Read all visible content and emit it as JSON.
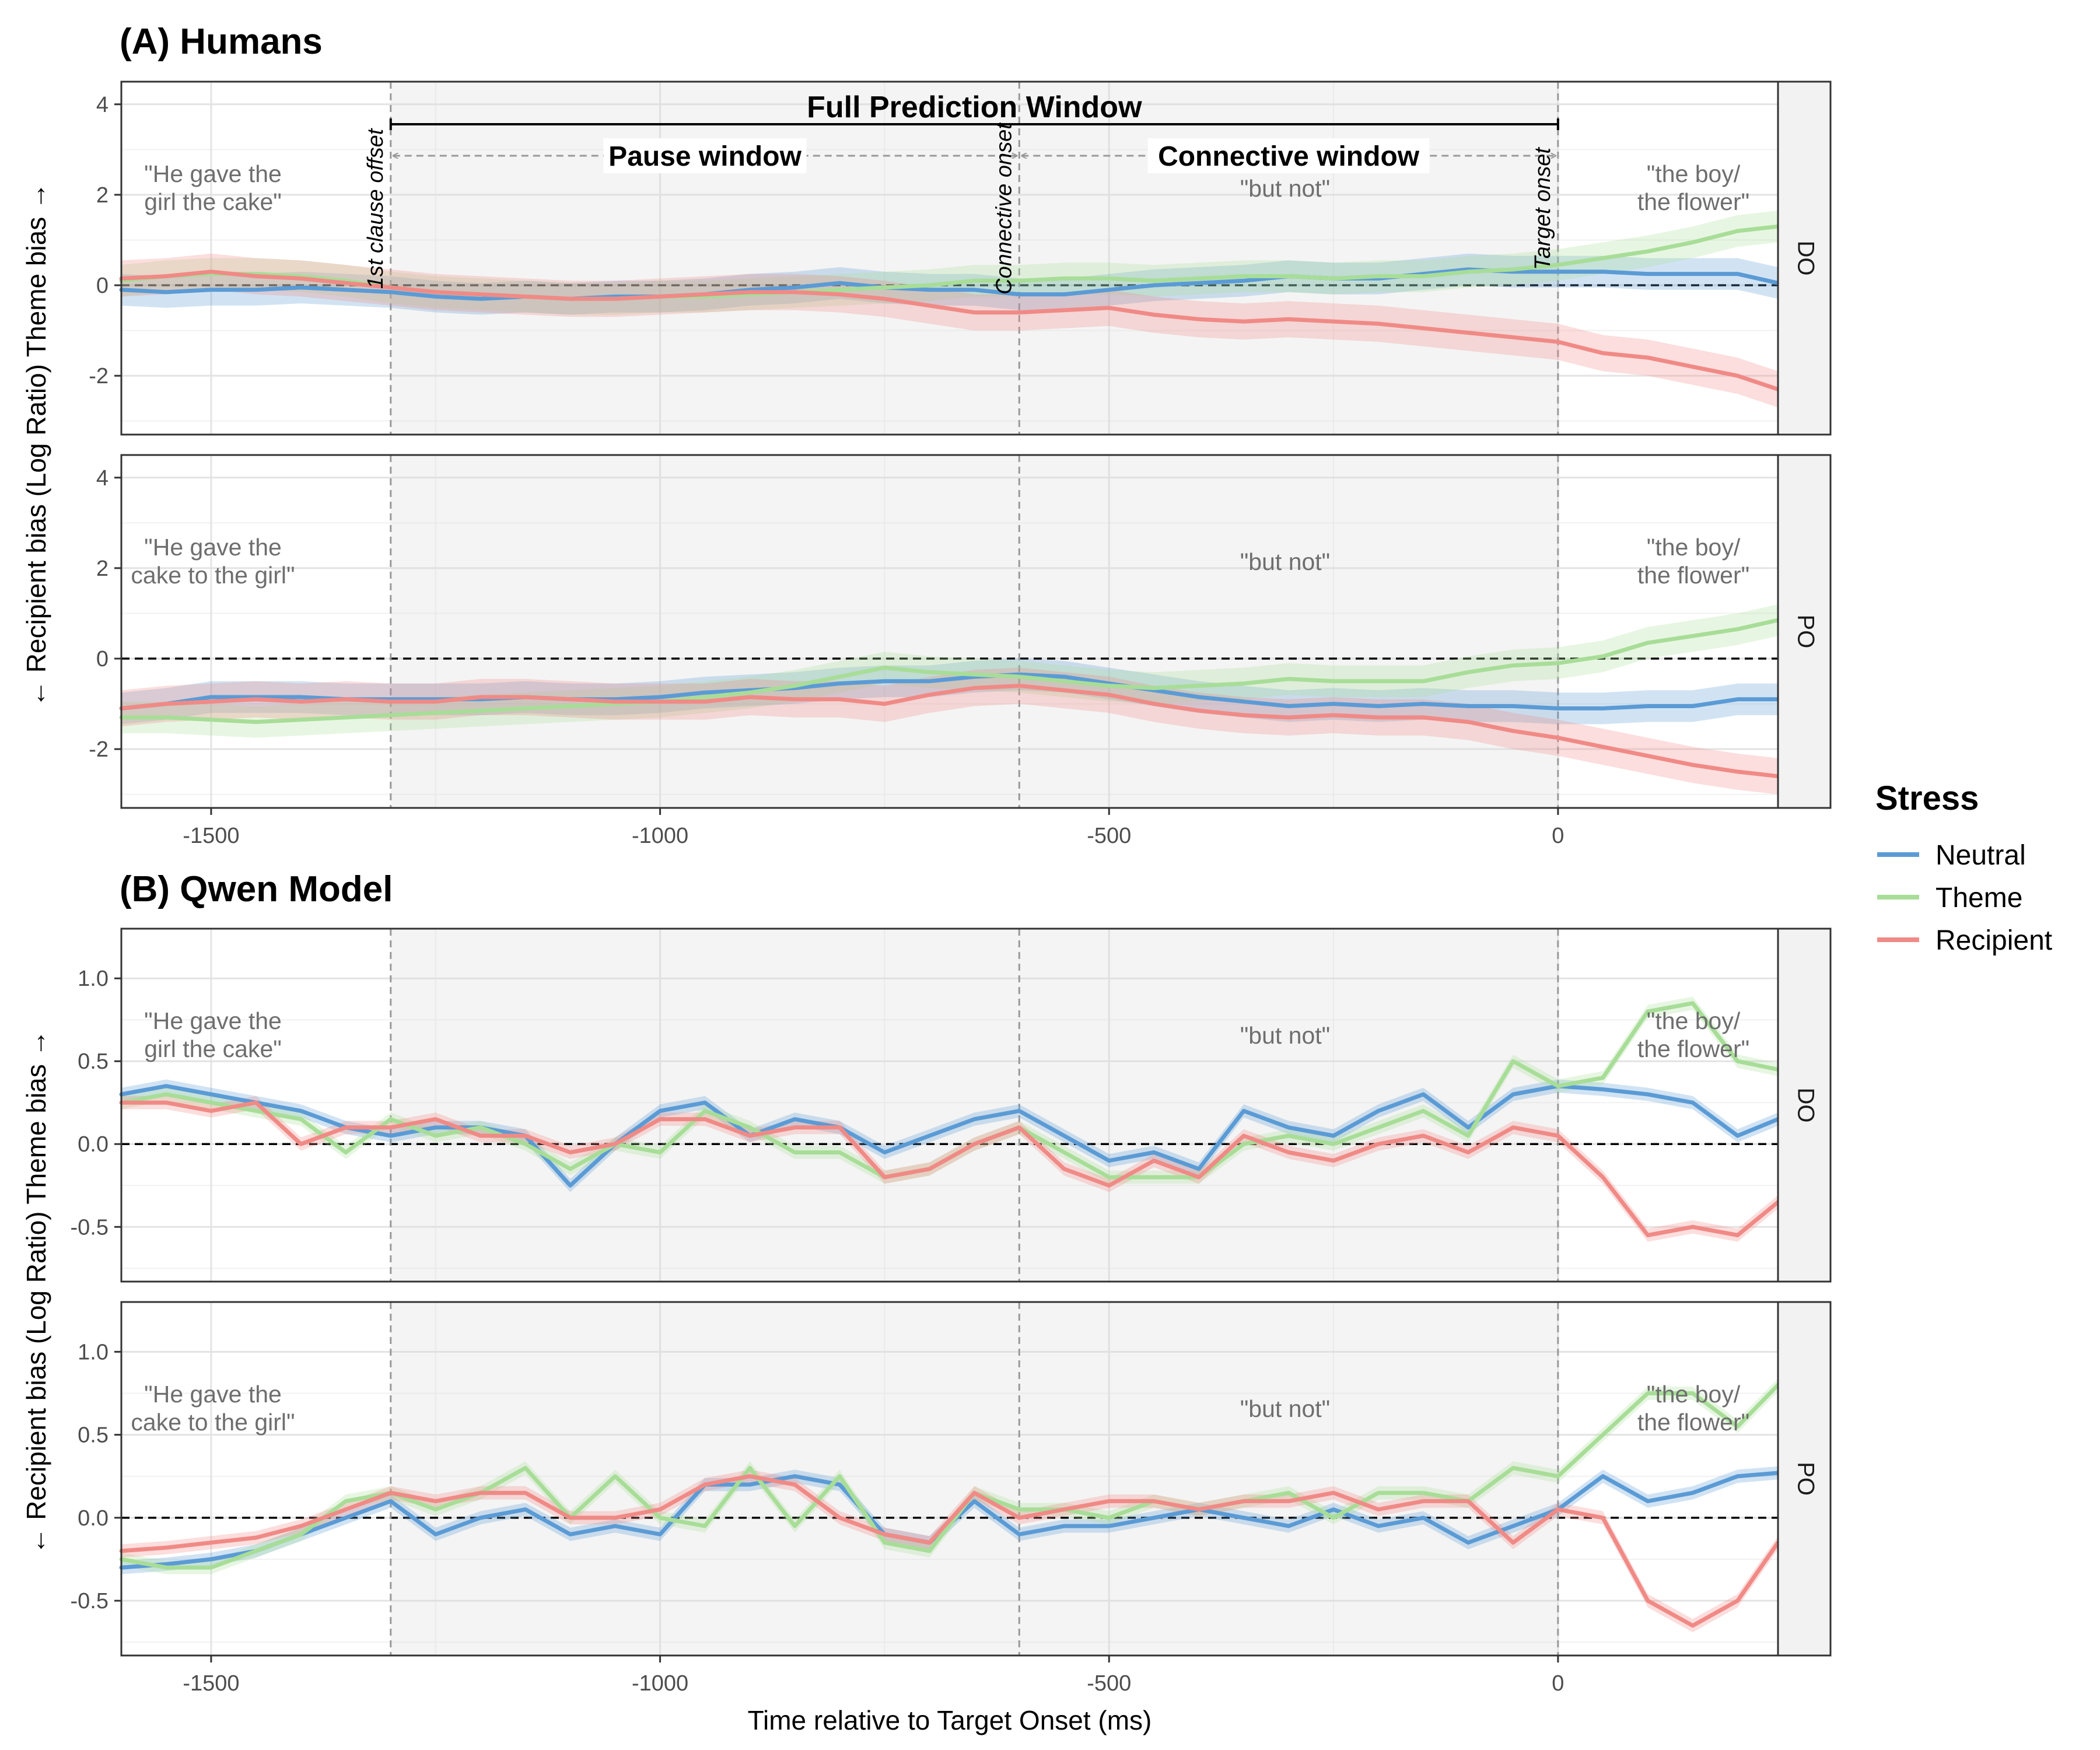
{
  "chart_data": {
    "type": "line",
    "xlabel": "Time relative to Target Onset (ms)",
    "ylabel": "← Recipient bias (Log Ratio) Theme bias →",
    "xlim": [
      -1600,
      245
    ],
    "xticks": [
      -1500,
      -1000,
      -500,
      0
    ],
    "xtick_labels": [
      "-1500",
      "-1000",
      "-500",
      "0"
    ],
    "x": [
      -1600,
      -1550,
      -1500,
      -1450,
      -1400,
      -1350,
      -1300,
      -1250,
      -1200,
      -1150,
      -1100,
      -1050,
      -1000,
      -950,
      -900,
      -850,
      -800,
      -750,
      -700,
      -650,
      -600,
      -550,
      -500,
      -450,
      -400,
      -350,
      -300,
      -250,
      -200,
      -150,
      -100,
      -50,
      0,
      50,
      100,
      150,
      200,
      245
    ],
    "legend": {
      "title": "Stress",
      "entries": [
        "Neutral",
        "Theme",
        "Recipient"
      ],
      "colors": [
        "#5b9bd5",
        "#a8dd98",
        "#f08a86"
      ],
      "position": "right"
    },
    "reference_lines": [
      {
        "x": -1300,
        "label": "1st clause offset"
      },
      {
        "x": -600,
        "label": "Connective onset"
      },
      {
        "x": 0,
        "label": "Target onset"
      }
    ],
    "shaded_region": [
      -1300,
      0
    ],
    "windows": {
      "full": {
        "label": "Full Prediction Window",
        "range": [
          -1300,
          0
        ]
      },
      "pause": {
        "label": "Pause window",
        "range": [
          -1300,
          -600
        ]
      },
      "connective": {
        "label": "Connective window",
        "range": [
          -600,
          0
        ]
      }
    },
    "panels": [
      {
        "id": "A",
        "title": "(A) Humans",
        "ylim": [
          -3.3,
          4.5
        ],
        "yticks": [
          -2,
          0,
          2,
          4
        ],
        "ytick_labels": [
          "-2",
          "0",
          "2",
          "4"
        ],
        "rows": [
          {
            "facet": "DO",
            "phrases": [
              "\"He gave the",
              "girl the cake\"",
              "\"but not\"",
              "\"the boy/",
              "the flower\""
            ],
            "series": [
              {
                "name": "Neutral",
                "band": 0.35,
                "values": [
                  -0.1,
                  -0.15,
                  -0.1,
                  -0.1,
                  -0.05,
                  -0.1,
                  -0.15,
                  -0.25,
                  -0.3,
                  -0.25,
                  -0.3,
                  -0.25,
                  -0.25,
                  -0.2,
                  -0.1,
                  -0.05,
                  0.05,
                  -0.05,
                  -0.1,
                  -0.1,
                  -0.2,
                  -0.2,
                  -0.1,
                  0.0,
                  0.05,
                  0.1,
                  0.2,
                  0.15,
                  0.15,
                  0.25,
                  0.35,
                  0.3,
                  0.3,
                  0.3,
                  0.25,
                  0.25,
                  0.25,
                  0.05
                ]
              },
              {
                "name": "Theme",
                "band": 0.35,
                "values": [
                  0.1,
                  0.2,
                  0.25,
                  0.25,
                  0.2,
                  0.1,
                  -0.05,
                  -0.15,
                  -0.2,
                  -0.25,
                  -0.3,
                  -0.3,
                  -0.25,
                  -0.25,
                  -0.2,
                  -0.15,
                  -0.1,
                  -0.05,
                  0.0,
                  0.1,
                  0.1,
                  0.15,
                  0.15,
                  0.1,
                  0.15,
                  0.2,
                  0.2,
                  0.15,
                  0.2,
                  0.2,
                  0.3,
                  0.35,
                  0.45,
                  0.6,
                  0.75,
                  0.95,
                  1.2,
                  1.3
                ]
              },
              {
                "name": "Recipient",
                "band": 0.4,
                "values": [
                  0.15,
                  0.2,
                  0.3,
                  0.2,
                  0.15,
                  0.05,
                  -0.05,
                  -0.15,
                  -0.2,
                  -0.25,
                  -0.3,
                  -0.3,
                  -0.25,
                  -0.2,
                  -0.15,
                  -0.15,
                  -0.2,
                  -0.3,
                  -0.45,
                  -0.6,
                  -0.6,
                  -0.55,
                  -0.5,
                  -0.65,
                  -0.75,
                  -0.8,
                  -0.75,
                  -0.8,
                  -0.85,
                  -0.95,
                  -1.05,
                  -1.15,
                  -1.25,
                  -1.5,
                  -1.6,
                  -1.8,
                  -2.0,
                  -2.3
                ]
              }
            ]
          },
          {
            "facet": "PO",
            "phrases": [
              "\"He gave the",
              "cake to the girl\"",
              "\"but not\"",
              "\"the boy/",
              "the flower\""
            ],
            "series": [
              {
                "name": "Neutral",
                "band": 0.35,
                "values": [
                  -1.1,
                  -1.0,
                  -0.85,
                  -0.85,
                  -0.85,
                  -0.9,
                  -0.9,
                  -0.9,
                  -0.9,
                  -0.85,
                  -0.9,
                  -0.9,
                  -0.85,
                  -0.75,
                  -0.7,
                  -0.65,
                  -0.55,
                  -0.5,
                  -0.5,
                  -0.4,
                  -0.35,
                  -0.4,
                  -0.55,
                  -0.7,
                  -0.85,
                  -0.95,
                  -1.05,
                  -1.0,
                  -1.05,
                  -1.0,
                  -1.05,
                  -1.05,
                  -1.1,
                  -1.1,
                  -1.05,
                  -1.05,
                  -0.9,
                  -0.9
                ]
              },
              {
                "name": "Theme",
                "band": 0.35,
                "values": [
                  -1.3,
                  -1.3,
                  -1.35,
                  -1.4,
                  -1.35,
                  -1.3,
                  -1.25,
                  -1.2,
                  -1.15,
                  -1.1,
                  -1.05,
                  -1.0,
                  -0.95,
                  -0.85,
                  -0.75,
                  -0.6,
                  -0.4,
                  -0.2,
                  -0.3,
                  -0.35,
                  -0.4,
                  -0.5,
                  -0.6,
                  -0.65,
                  -0.6,
                  -0.55,
                  -0.45,
                  -0.5,
                  -0.5,
                  -0.5,
                  -0.3,
                  -0.15,
                  -0.1,
                  0.05,
                  0.35,
                  0.5,
                  0.65,
                  0.85
                ]
              },
              {
                "name": "Recipient",
                "band": 0.4,
                "values": [
                  -1.1,
                  -1.0,
                  -0.95,
                  -0.9,
                  -0.95,
                  -0.9,
                  -0.95,
                  -0.95,
                  -0.85,
                  -0.85,
                  -0.9,
                  -0.95,
                  -0.95,
                  -0.95,
                  -0.85,
                  -0.9,
                  -0.9,
                  -1.0,
                  -0.8,
                  -0.65,
                  -0.6,
                  -0.7,
                  -0.8,
                  -1.0,
                  -1.15,
                  -1.25,
                  -1.3,
                  -1.25,
                  -1.3,
                  -1.3,
                  -1.4,
                  -1.6,
                  -1.75,
                  -1.95,
                  -2.15,
                  -2.35,
                  -2.5,
                  -2.6
                ]
              }
            ]
          }
        ]
      },
      {
        "id": "B",
        "title": "(B) Qwen Model",
        "ylim": [
          -0.83,
          1.3
        ],
        "yticks": [
          -0.5,
          0.0,
          0.5,
          1.0
        ],
        "ytick_labels": [
          "-0.5",
          "0.0",
          "0.5",
          "1.0"
        ],
        "rows": [
          {
            "facet": "DO",
            "phrases": [
              "\"He gave the",
              "girl the cake\"",
              "\"but not\"",
              "\"the boy/",
              "the flower\""
            ],
            "series": [
              {
                "name": "Neutral",
                "band": 0.04,
                "values": [
                  0.3,
                  0.35,
                  0.3,
                  0.25,
                  0.2,
                  0.1,
                  0.05,
                  0.1,
                  0.1,
                  0.05,
                  -0.25,
                  0.0,
                  0.2,
                  0.25,
                  0.05,
                  0.15,
                  0.1,
                  -0.05,
                  0.05,
                  0.15,
                  0.2,
                  0.05,
                  -0.1,
                  -0.05,
                  -0.15,
                  0.2,
                  0.1,
                  0.05,
                  0.2,
                  0.3,
                  0.1,
                  0.3,
                  0.35,
                  0.33,
                  0.3,
                  0.25,
                  0.05,
                  0.15
                ]
              },
              {
                "name": "Theme",
                "band": 0.04,
                "values": [
                  0.25,
                  0.3,
                  0.25,
                  0.2,
                  0.15,
                  -0.05,
                  0.15,
                  0.05,
                  0.1,
                  0.0,
                  -0.15,
                  0.0,
                  -0.05,
                  0.2,
                  0.1,
                  -0.05,
                  -0.05,
                  -0.2,
                  -0.15,
                  0.0,
                  0.1,
                  -0.05,
                  -0.2,
                  -0.2,
                  -0.2,
                  0.0,
                  0.05,
                  0.0,
                  0.1,
                  0.2,
                  0.05,
                  0.5,
                  0.35,
                  0.4,
                  0.8,
                  0.85,
                  0.5,
                  0.45
                ]
              },
              {
                "name": "Recipient",
                "band": 0.04,
                "values": [
                  0.25,
                  0.25,
                  0.2,
                  0.25,
                  0.0,
                  0.1,
                  0.1,
                  0.15,
                  0.05,
                  0.05,
                  -0.05,
                  0.0,
                  0.15,
                  0.15,
                  0.05,
                  0.1,
                  0.1,
                  -0.2,
                  -0.15,
                  0.0,
                  0.1,
                  -0.15,
                  -0.25,
                  -0.1,
                  -0.2,
                  0.05,
                  -0.05,
                  -0.1,
                  0.0,
                  0.05,
                  -0.05,
                  0.1,
                  0.05,
                  -0.2,
                  -0.55,
                  -0.5,
                  -0.55,
                  -0.35
                ]
              }
            ]
          },
          {
            "facet": "PO",
            "phrases": [
              "\"He gave the",
              "cake to the girl\"",
              "\"but not\"",
              "\"the boy/",
              "the flower\""
            ],
            "series": [
              {
                "name": "Neutral",
                "band": 0.04,
                "values": [
                  -0.3,
                  -0.28,
                  -0.25,
                  -0.2,
                  -0.1,
                  0.0,
                  0.1,
                  -0.1,
                  0.0,
                  0.05,
                  -0.1,
                  -0.05,
                  -0.1,
                  0.2,
                  0.2,
                  0.25,
                  0.2,
                  -0.1,
                  -0.15,
                  0.1,
                  -0.1,
                  -0.05,
                  -0.05,
                  0.0,
                  0.05,
                  0.0,
                  -0.05,
                  0.05,
                  -0.05,
                  0.0,
                  -0.15,
                  -0.05,
                  0.05,
                  0.25,
                  0.1,
                  0.15,
                  0.25,
                  0.27
                ]
              },
              {
                "name": "Theme",
                "band": 0.04,
                "values": [
                  -0.25,
                  -0.3,
                  -0.3,
                  -0.2,
                  -0.1,
                  0.1,
                  0.15,
                  0.05,
                  0.15,
                  0.3,
                  0.0,
                  0.25,
                  0.0,
                  -0.05,
                  0.3,
                  -0.05,
                  0.25,
                  -0.15,
                  -0.2,
                  0.15,
                  0.05,
                  0.05,
                  0.0,
                  0.1,
                  0.05,
                  0.1,
                  0.15,
                  0.0,
                  0.15,
                  0.15,
                  0.1,
                  0.3,
                  0.25,
                  0.5,
                  0.75,
                  0.75,
                  0.55,
                  0.8
                ]
              },
              {
                "name": "Recipient",
                "band": 0.04,
                "values": [
                  -0.2,
                  -0.18,
                  -0.15,
                  -0.12,
                  -0.05,
                  0.05,
                  0.15,
                  0.1,
                  0.15,
                  0.15,
                  0.0,
                  0.0,
                  0.05,
                  0.2,
                  0.25,
                  0.2,
                  0.0,
                  -0.1,
                  -0.15,
                  0.15,
                  0.0,
                  0.05,
                  0.1,
                  0.1,
                  0.05,
                  0.1,
                  0.1,
                  0.15,
                  0.05,
                  0.1,
                  0.1,
                  -0.15,
                  0.05,
                  0.0,
                  -0.5,
                  -0.65,
                  -0.5,
                  -0.15
                ]
              }
            ]
          }
        ]
      }
    ]
  }
}
